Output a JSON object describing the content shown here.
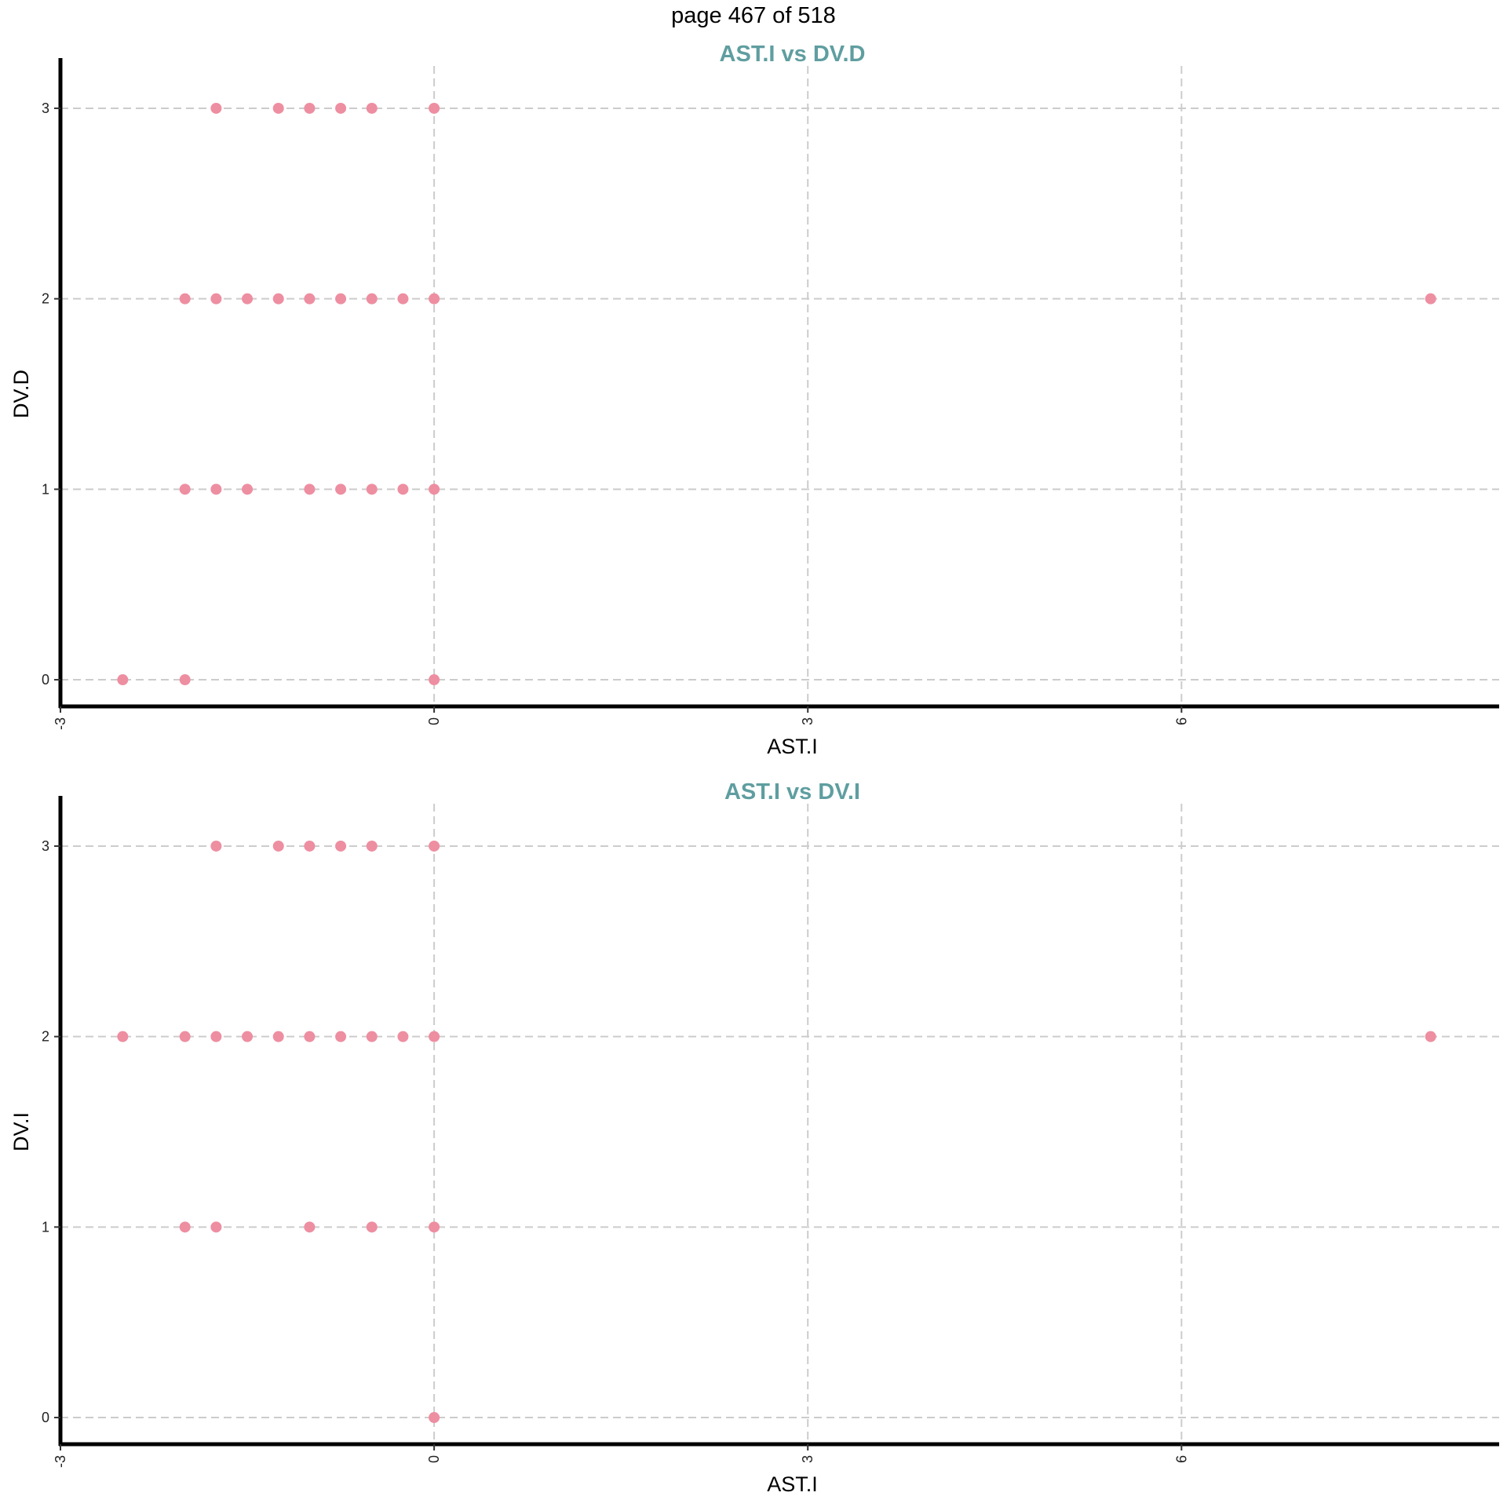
{
  "page_label": "page 467 of 518",
  "colors": {
    "point": "#EE8EA1",
    "title": "#5F9EA0",
    "grid": "#CCCCCC",
    "axis": "#000000"
  },
  "chart_data": [
    {
      "type": "scatter",
      "title": "AST.I vs DV.D",
      "xlabel": "AST.I",
      "ylabel": "DV.D",
      "xlim": [
        -3.0,
        8.55
      ],
      "ylim": [
        -0.14,
        3.14
      ],
      "xticks": [
        -3,
        0,
        3,
        6
      ],
      "yticks": [
        0,
        1,
        2,
        3
      ],
      "grid": true,
      "points": [
        {
          "x": -1.75,
          "y": 3
        },
        {
          "x": -1.25,
          "y": 3
        },
        {
          "x": -1.0,
          "y": 3
        },
        {
          "x": -0.75,
          "y": 3
        },
        {
          "x": -0.5,
          "y": 3
        },
        {
          "x": 0,
          "y": 3
        },
        {
          "x": -2.0,
          "y": 2
        },
        {
          "x": -1.75,
          "y": 2
        },
        {
          "x": -1.5,
          "y": 2
        },
        {
          "x": -1.25,
          "y": 2
        },
        {
          "x": -1.0,
          "y": 2
        },
        {
          "x": -0.75,
          "y": 2
        },
        {
          "x": -0.5,
          "y": 2
        },
        {
          "x": -0.25,
          "y": 2
        },
        {
          "x": 0,
          "y": 2
        },
        {
          "x": 8.0,
          "y": 2
        },
        {
          "x": -2.0,
          "y": 1
        },
        {
          "x": -1.75,
          "y": 1
        },
        {
          "x": -1.5,
          "y": 1
        },
        {
          "x": -1.0,
          "y": 1
        },
        {
          "x": -0.75,
          "y": 1
        },
        {
          "x": -0.5,
          "y": 1
        },
        {
          "x": -0.25,
          "y": 1
        },
        {
          "x": 0,
          "y": 1
        },
        {
          "x": -2.5,
          "y": 0
        },
        {
          "x": -2.0,
          "y": 0
        },
        {
          "x": 0,
          "y": 0
        }
      ]
    },
    {
      "type": "scatter",
      "title": "AST.I vs DV.I",
      "xlabel": "AST.I",
      "ylabel": "DV.I",
      "xlim": [
        -3.0,
        8.55
      ],
      "ylim": [
        -0.14,
        3.14
      ],
      "xticks": [
        -3,
        0,
        3,
        6
      ],
      "yticks": [
        0,
        1,
        2,
        3
      ],
      "grid": true,
      "points": [
        {
          "x": -1.75,
          "y": 3
        },
        {
          "x": -1.25,
          "y": 3
        },
        {
          "x": -1.0,
          "y": 3
        },
        {
          "x": -0.75,
          "y": 3
        },
        {
          "x": -0.5,
          "y": 3
        },
        {
          "x": 0,
          "y": 3
        },
        {
          "x": -2.5,
          "y": 2
        },
        {
          "x": -2.0,
          "y": 2
        },
        {
          "x": -1.75,
          "y": 2
        },
        {
          "x": -1.5,
          "y": 2
        },
        {
          "x": -1.25,
          "y": 2
        },
        {
          "x": -1.0,
          "y": 2
        },
        {
          "x": -0.75,
          "y": 2
        },
        {
          "x": -0.5,
          "y": 2
        },
        {
          "x": -0.25,
          "y": 2
        },
        {
          "x": 0,
          "y": 2
        },
        {
          "x": 8.0,
          "y": 2
        },
        {
          "x": -2.0,
          "y": 1
        },
        {
          "x": -1.75,
          "y": 1
        },
        {
          "x": -1.0,
          "y": 1
        },
        {
          "x": -0.5,
          "y": 1
        },
        {
          "x": 0,
          "y": 1
        },
        {
          "x": 0,
          "y": 0
        }
      ]
    }
  ]
}
